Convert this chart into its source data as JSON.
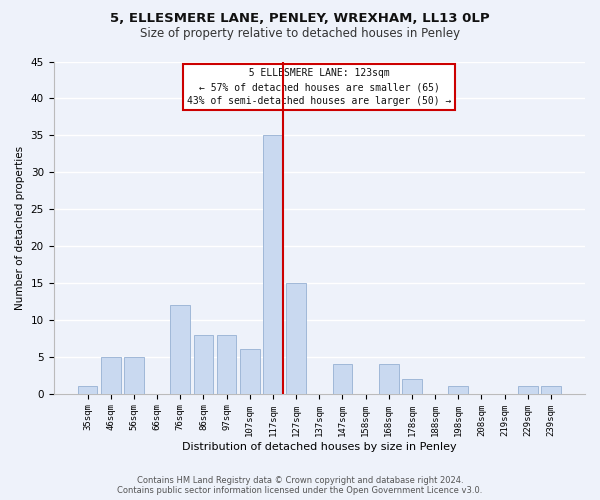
{
  "title1": "5, ELLESMERE LANE, PENLEY, WREXHAM, LL13 0LP",
  "title2": "Size of property relative to detached houses in Penley",
  "xlabel": "Distribution of detached houses by size in Penley",
  "ylabel": "Number of detached properties",
  "bar_labels": [
    "35sqm",
    "46sqm",
    "56sqm",
    "66sqm",
    "76sqm",
    "86sqm",
    "97sqm",
    "107sqm",
    "117sqm",
    "127sqm",
    "137sqm",
    "147sqm",
    "158sqm",
    "168sqm",
    "178sqm",
    "188sqm",
    "198sqm",
    "208sqm",
    "219sqm",
    "229sqm",
    "239sqm"
  ],
  "bar_values": [
    1,
    5,
    5,
    0,
    12,
    8,
    8,
    6,
    35,
    15,
    0,
    4,
    0,
    4,
    2,
    0,
    1,
    0,
    0,
    1,
    1
  ],
  "bar_color": "#c9d9f0",
  "bar_edge_color": "#a0b8d8",
  "highlight_index": 8,
  "highlight_line_color": "#cc0000",
  "ylim": [
    0,
    45
  ],
  "yticks": [
    0,
    5,
    10,
    15,
    20,
    25,
    30,
    35,
    40,
    45
  ],
  "annotation_title": "5 ELLESMERE LANE: 123sqm",
  "annotation_line1": "← 57% of detached houses are smaller (65)",
  "annotation_line2": "43% of semi-detached houses are larger (50) →",
  "annotation_box_color": "#ffffff",
  "annotation_box_edge": "#cc0000",
  "footer1": "Contains HM Land Registry data © Crown copyright and database right 2024.",
  "footer2": "Contains public sector information licensed under the Open Government Licence v3.0.",
  "background_color": "#eef2fa",
  "grid_color": "#ffffff",
  "title1_fontsize": 9.5,
  "title2_fontsize": 8.5
}
